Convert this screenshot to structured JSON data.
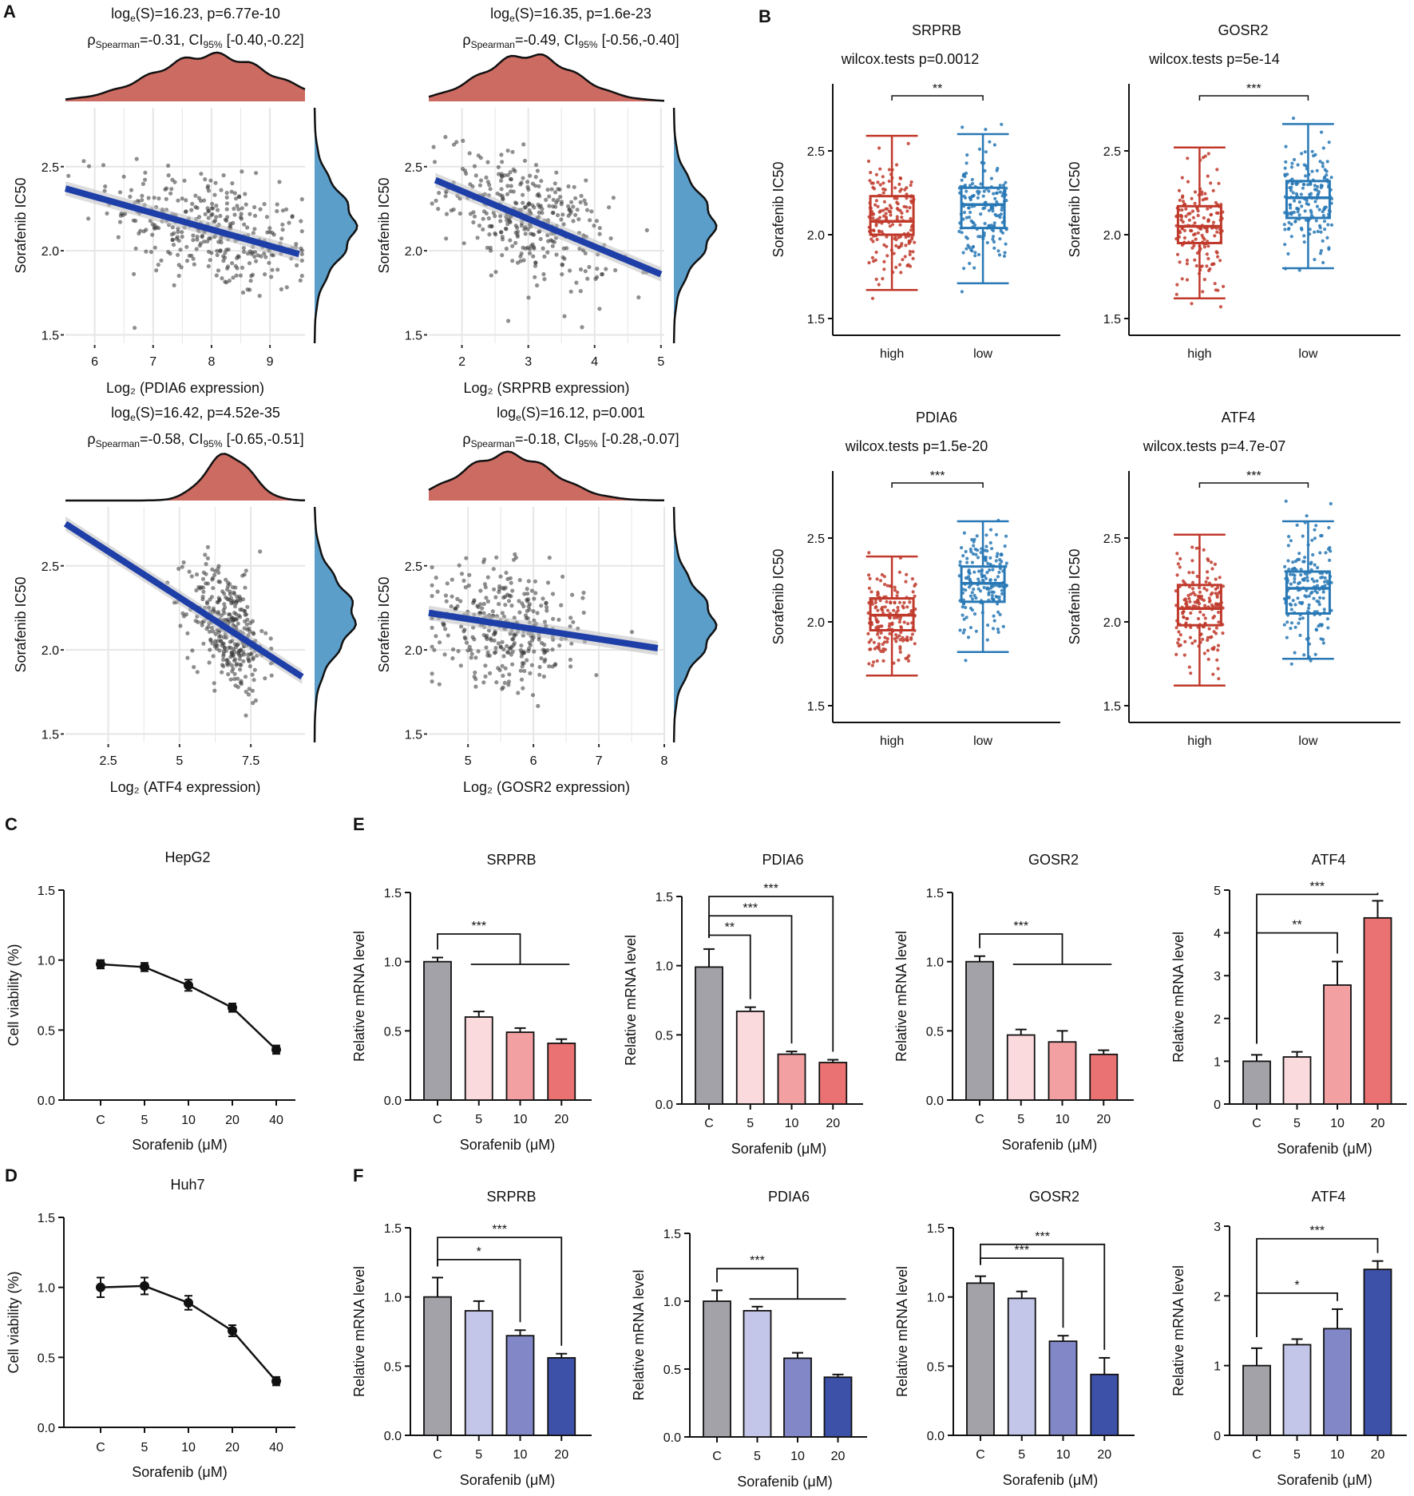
{
  "colors": {
    "density_top": "#cc6b62",
    "density_side": "#5b9ec9",
    "regression_line": "#1f3fa8",
    "points": "#333333",
    "grid": "#e6e6e6",
    "box_high": "#c0392b",
    "box_low": "#2878b5",
    "text": "#111111",
    "bar_C": "#a2a2a8",
    "bar_E_5": "#fbdadd",
    "bar_E_10": "#f3a0a3",
    "bar_E_20": "#ea7272",
    "bar_F_5": "#c3c6e8",
    "bar_F_10": "#8288c7",
    "bar_F_20": "#3e51a8"
  },
  "panel_labels": {
    "A": "A",
    "B": "B",
    "C": "C",
    "D": "D",
    "E": "E",
    "F": "F"
  },
  "chart_data": [
    {
      "id": "A1",
      "type": "scatter",
      "panel": "A",
      "stat_line1": "log_e(S)=16.23, p=6.77e-10",
      "stat_line2": "ρ_Spearman=-0.31, CI_95% [-0.40,-0.22]",
      "xlabel": "Log₂ (PDIA6 expression)",
      "ylabel": "Sorafenib IC50",
      "xlim": [
        5.5,
        9.6
      ],
      "ylim": [
        1.45,
        2.85
      ],
      "xticks": [
        6,
        7,
        8,
        9
      ],
      "yticks": [
        1.5,
        2.0,
        2.5
      ],
      "fit": {
        "x": [
          5.5,
          9.5
        ],
        "y": [
          2.37,
          1.98
        ]
      },
      "density_top": {
        "peak": 8.0,
        "sd": 1.0
      },
      "density_side": {
        "peak": 2.15,
        "sd": 0.2
      },
      "n_points": 350
    },
    {
      "id": "A2",
      "type": "scatter",
      "panel": "A",
      "stat_line1": "log_e(S)=16.35, p=1.6e-23",
      "stat_line2": "ρ_Spearman=-0.49, CI_95% [-0.56,-0.40]",
      "xlabel": "Log₂ (SRPRB expression)",
      "ylabel": "Sorafenib IC50",
      "xlim": [
        1.5,
        5.05
      ],
      "ylim": [
        1.45,
        2.85
      ],
      "xticks": [
        2,
        3,
        4,
        5
      ],
      "yticks": [
        1.5,
        2.0,
        2.5
      ],
      "fit": {
        "x": [
          1.6,
          5.0
        ],
        "y": [
          2.42,
          1.86
        ]
      },
      "density_top": {
        "peak": 3.0,
        "sd": 0.7
      },
      "density_side": {
        "peak": 2.15,
        "sd": 0.2
      },
      "n_points": 350
    },
    {
      "id": "A3",
      "type": "scatter",
      "panel": "A",
      "stat_line1": "log_e(S)=16.42, p=4.52e-35",
      "stat_line2": "ρ_Spearman=-0.58, CI_95% [-0.65,-0.51]",
      "xlabel": "Log₂ (ATF4 expression)",
      "ylabel": "Sorafenib IC50",
      "xlim": [
        1.0,
        9.4
      ],
      "ylim": [
        1.45,
        2.85
      ],
      "xticks": [
        2.5,
        5.0,
        7.5
      ],
      "yticks": [
        1.5,
        2.0,
        2.5
      ],
      "fit": {
        "x": [
          1.0,
          9.3
        ],
        "y": [
          2.75,
          1.84
        ]
      },
      "density_top": {
        "peak": 6.7,
        "sd": 0.8
      },
      "density_side": {
        "peak": 2.2,
        "sd": 0.2
      },
      "n_points": 350
    },
    {
      "id": "A4",
      "type": "scatter",
      "panel": "A",
      "stat_line1": "log_e(S)=16.12, p=0.001",
      "stat_line2": "ρ_Spearman=-0.18, CI_95% [-0.28,-0.07]",
      "xlabel": "Log₂ (GOSR2 expression)",
      "ylabel": "Sorafenib IC50",
      "xlim": [
        4.4,
        8.0
      ],
      "ylim": [
        1.45,
        2.85
      ],
      "xticks": [
        5,
        6,
        7,
        8
      ],
      "yticks": [
        1.5,
        2.0,
        2.5
      ],
      "fit": {
        "x": [
          4.4,
          7.9
        ],
        "y": [
          2.22,
          2.01
        ]
      },
      "density_top": {
        "peak": 5.6,
        "sd": 0.7
      },
      "density_side": {
        "peak": 2.15,
        "sd": 0.2
      },
      "n_points": 350
    },
    {
      "id": "B1",
      "type": "box",
      "panel": "B",
      "title": "SRPRB",
      "test_label": "wilcox.tests p=0.0012",
      "sig": "**",
      "ylabel": "Sorafenib IC50",
      "ylim": [
        1.4,
        2.9
      ],
      "yticks": [
        1.5,
        2.0,
        2.5
      ],
      "groups": [
        {
          "name": "high",
          "min": 1.67,
          "q1": 2.0,
          "median": 2.08,
          "q3": 2.23,
          "max": 2.59
        },
        {
          "name": "low",
          "min": 1.71,
          "q1": 2.04,
          "median": 2.18,
          "q3": 2.28,
          "max": 2.6
        }
      ]
    },
    {
      "id": "B2",
      "type": "box",
      "panel": "B",
      "title": "GOSR2",
      "test_label": "wilcox.tests p=5e-14",
      "sig": "***",
      "ylabel": "Sorafenib IC50",
      "ylim": [
        1.4,
        2.9
      ],
      "yticks": [
        1.5,
        2.0,
        2.5
      ],
      "groups": [
        {
          "name": "high",
          "min": 1.62,
          "q1": 1.95,
          "median": 2.05,
          "q3": 2.17,
          "max": 2.52
        },
        {
          "name": "low",
          "min": 1.8,
          "q1": 2.1,
          "median": 2.22,
          "q3": 2.32,
          "max": 2.66
        }
      ]
    },
    {
      "id": "B3",
      "type": "box",
      "panel": "B",
      "title": "PDIA6",
      "test_label": "wilcox.tests p=1.5e-20",
      "sig": "***",
      "ylabel": "Sorafenib IC50",
      "ylim": [
        1.4,
        2.9
      ],
      "yticks": [
        1.5,
        2.0,
        2.5
      ],
      "groups": [
        {
          "name": "high",
          "min": 1.68,
          "q1": 1.95,
          "median": 2.04,
          "q3": 2.14,
          "max": 2.39
        },
        {
          "name": "low",
          "min": 1.82,
          "q1": 2.12,
          "median": 2.23,
          "q3": 2.33,
          "max": 2.6
        }
      ]
    },
    {
      "id": "B4",
      "type": "box",
      "panel": "B",
      "title": "ATF4",
      "test_label": "wilcox.tests p=4.7e-07",
      "sig": "***",
      "ylabel": "Sorafenib IC50",
      "ylim": [
        1.4,
        2.9
      ],
      "yticks": [
        1.5,
        2.0,
        2.5
      ],
      "groups": [
        {
          "name": "high",
          "min": 1.62,
          "q1": 1.98,
          "median": 2.08,
          "q3": 2.22,
          "max": 2.52
        },
        {
          "name": "low",
          "min": 1.78,
          "q1": 2.05,
          "median": 2.2,
          "q3": 2.3,
          "max": 2.6
        }
      ]
    },
    {
      "id": "C",
      "type": "line",
      "panel": "C",
      "title": "HepG2",
      "xlabel": "Sorafenib (μM)",
      "ylabel": "Cell viability (%)",
      "categories": [
        "C",
        "5",
        "10",
        "20",
        "40"
      ],
      "values": [
        0.97,
        0.95,
        0.82,
        0.66,
        0.36
      ],
      "errors": [
        0.03,
        0.03,
        0.04,
        0.03,
        0.03
      ],
      "ylim": [
        0,
        1.5
      ],
      "yticks": [
        "0.0",
        "0.5",
        "1.0",
        "1.5"
      ]
    },
    {
      "id": "D",
      "type": "line",
      "panel": "D",
      "title": "Huh7",
      "xlabel": "Sorafenib (μM)",
      "ylabel": "Cell viability (%)",
      "categories": [
        "C",
        "5",
        "10",
        "20",
        "40"
      ],
      "values": [
        1.0,
        1.01,
        0.89,
        0.69,
        0.33
      ],
      "errors": [
        0.07,
        0.06,
        0.05,
        0.04,
        0.03
      ],
      "ylim": [
        0,
        1.5
      ],
      "yticks": [
        "0.0",
        "0.5",
        "1.0",
        "1.5"
      ]
    },
    {
      "id": "E1",
      "type": "bar",
      "panel": "E",
      "title": "SRPRB",
      "xlabel": "Sorafenib (μM)",
      "ylabel": "Relative  mRNA  level",
      "categories": [
        "C",
        "5",
        "10",
        "20"
      ],
      "values": [
        1.0,
        0.6,
        0.49,
        0.41
      ],
      "errors": [
        0.03,
        0.04,
        0.03,
        0.03
      ],
      "ylim": [
        0,
        1.5
      ],
      "yticks": [
        "0.0",
        "0.5",
        "1.0",
        "1.5"
      ],
      "brackets": [
        {
          "type": "group",
          "from": 0,
          "to": [
            1,
            3
          ],
          "label": "***",
          "level": 1.2
        }
      ]
    },
    {
      "id": "E2",
      "type": "bar",
      "panel": "E",
      "title": "PDIA6",
      "xlabel": "Sorafenib (μM)",
      "ylabel": "Relative  mRNA  level",
      "categories": [
        "C",
        "5",
        "10",
        "20"
      ],
      "values": [
        0.99,
        0.67,
        0.36,
        0.3
      ],
      "errors": [
        0.13,
        0.03,
        0.02,
        0.02
      ],
      "ylim": [
        0,
        1.5
      ],
      "yticks": [
        "0.0",
        "0.5",
        "1.0",
        "1.5"
      ],
      "brackets": [
        {
          "type": "pair",
          "from": 0,
          "to": 1,
          "label": "**",
          "level": 1.22
        },
        {
          "type": "pair",
          "from": 0,
          "to": 2,
          "label": "***",
          "level": 1.36
        },
        {
          "type": "pair",
          "from": 0,
          "to": 3,
          "label": "***",
          "level": 1.5
        }
      ]
    },
    {
      "id": "E3",
      "type": "bar",
      "panel": "E",
      "title": "GOSR2",
      "xlabel": "Sorafenib (μM)",
      "ylabel": "Relative  mRNA  level",
      "categories": [
        "C",
        "5",
        "10",
        "20"
      ],
      "values": [
        1.0,
        0.47,
        0.42,
        0.33
      ],
      "errors": [
        0.04,
        0.04,
        0.08,
        0.03
      ],
      "ylim": [
        0,
        1.5
      ],
      "yticks": [
        "0.0",
        "0.5",
        "1.0",
        "1.5"
      ],
      "brackets": [
        {
          "type": "group",
          "from": 0,
          "to": [
            1,
            3
          ],
          "label": "***",
          "level": 1.2
        }
      ]
    },
    {
      "id": "E4",
      "type": "bar",
      "panel": "E",
      "title": "ATF4",
      "xlabel": "Sorafenib (μM)",
      "ylabel": "Relative  mRNA  level",
      "categories": [
        "C",
        "5",
        "10",
        "20"
      ],
      "values": [
        1.0,
        1.1,
        2.78,
        4.35
      ],
      "errors": [
        0.15,
        0.12,
        0.55,
        0.4
      ],
      "ylim": [
        0,
        5
      ],
      "yticks": [
        "0",
        "1",
        "2",
        "3",
        "4",
        "5"
      ],
      "brackets": [
        {
          "type": "pair",
          "from": 0,
          "to": 2,
          "label": "**",
          "level": 4.0
        },
        {
          "type": "pair",
          "from": 0,
          "to": 3,
          "label": "***",
          "level": 4.9
        }
      ]
    },
    {
      "id": "F1",
      "type": "bar",
      "panel": "F",
      "title": "SRPRB",
      "xlabel": "Sorafenib (μM)",
      "ylabel": "Relative  mRNA  level",
      "categories": [
        "C",
        "5",
        "10",
        "20"
      ],
      "values": [
        1.0,
        0.9,
        0.72,
        0.56
      ],
      "errors": [
        0.14,
        0.07,
        0.04,
        0.03
      ],
      "ylim": [
        0,
        1.5
      ],
      "yticks": [
        "0.0",
        "0.5",
        "1.0",
        "1.5"
      ],
      "brackets": [
        {
          "type": "pair",
          "from": 0,
          "to": 2,
          "label": "*",
          "level": 1.27
        },
        {
          "type": "pair",
          "from": 0,
          "to": 3,
          "label": "***",
          "level": 1.43
        }
      ]
    },
    {
      "id": "F2",
      "type": "bar",
      "panel": "F",
      "title": "PDIA6",
      "xlabel": "Sorafenib (μM)",
      "ylabel": "Relative  mRNA  level",
      "categories": [
        "C",
        "5",
        "10",
        "20"
      ],
      "values": [
        1.0,
        0.93,
        0.58,
        0.44
      ],
      "errors": [
        0.08,
        0.03,
        0.04,
        0.02
      ],
      "ylim": [
        0,
        1.5
      ],
      "yticks": [
        "0.0",
        "0.5",
        "1.0",
        "1.5"
      ],
      "brackets": [
        {
          "type": "group",
          "from": 0,
          "to": [
            1,
            3
          ],
          "label": "***",
          "level": 1.24
        }
      ]
    },
    {
      "id": "F3",
      "type": "bar",
      "panel": "F",
      "title": "GOSR2",
      "xlabel": "Sorafenib (μM)",
      "ylabel": "Relative  mRNA  level",
      "categories": [
        "C",
        "5",
        "10",
        "20"
      ],
      "values": [
        1.1,
        0.99,
        0.68,
        0.44
      ],
      "errors": [
        0.05,
        0.05,
        0.04,
        0.12
      ],
      "ylim": [
        0,
        1.5
      ],
      "yticks": [
        "0.0",
        "0.5",
        "1.0",
        "1.5"
      ],
      "brackets": [
        {
          "type": "pair",
          "from": 0,
          "to": 2,
          "label": "***",
          "level": 1.28
        },
        {
          "type": "pair",
          "from": 0,
          "to": 3,
          "label": "***",
          "level": 1.38
        }
      ]
    },
    {
      "id": "F4",
      "type": "bar",
      "panel": "F",
      "title": "ATF4",
      "xlabel": "Sorafenib (μM)",
      "ylabel": "Relative  mRNA  level",
      "categories": [
        "C",
        "5",
        "10",
        "20"
      ],
      "values": [
        1.0,
        1.3,
        1.53,
        2.38
      ],
      "errors": [
        0.25,
        0.08,
        0.28,
        0.12
      ],
      "ylim": [
        0,
        3
      ],
      "yticks": [
        "0",
        "1",
        "2",
        "3"
      ],
      "brackets": [
        {
          "type": "pair",
          "from": 0,
          "to": 2,
          "label": "*",
          "level": 2.04
        },
        {
          "type": "pair",
          "from": 0,
          "to": 3,
          "label": "***",
          "level": 2.82
        }
      ]
    }
  ]
}
